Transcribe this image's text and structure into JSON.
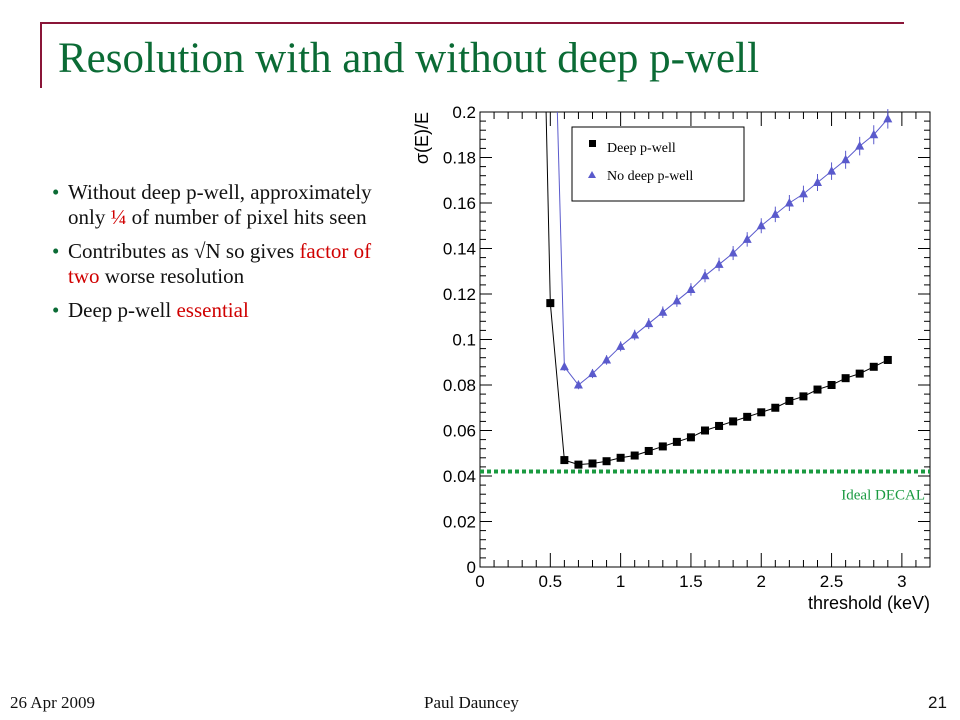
{
  "slide": {
    "title": "Resolution with and without deep p-well",
    "bullets": [
      {
        "parts": [
          {
            "text": "Without deep p-well, approximately only "
          },
          {
            "text": "¼",
            "red": true
          },
          {
            "text": " of number of pixel hits seen"
          }
        ]
      },
      {
        "parts": [
          {
            "text": "Contributes as √N so gives "
          },
          {
            "text": "factor of two",
            "red": true
          },
          {
            "text": " worse resolution"
          }
        ]
      },
      {
        "parts": [
          {
            "text": "Deep p-well "
          },
          {
            "text": "essential",
            "red": true
          }
        ]
      }
    ],
    "footer": {
      "date": "26 Apr 2009",
      "author": "Paul Dauncey",
      "page": "21"
    }
  },
  "colors": {
    "title": "#0b6b35",
    "accent": "#d00000",
    "frame": "#8a1538",
    "series_deep": "#000000",
    "series_nodeep": "#5a5acc",
    "ideal_line": "#1a9a40"
  },
  "chart_data": {
    "type": "scatter",
    "xlabel": "threshold (keV)",
    "ylabel": "σ(E)/E",
    "xlim": [
      0,
      3.2
    ],
    "ylim": [
      0,
      0.2
    ],
    "xticks": [
      0,
      0.5,
      1,
      1.5,
      2,
      2.5,
      3
    ],
    "yticks": [
      0,
      0.02,
      0.04,
      0.06,
      0.08,
      0.1,
      0.12,
      0.14,
      0.16,
      0.18,
      0.2
    ],
    "legend_position": "top-right",
    "series": [
      {
        "name": "Deep p-well",
        "marker": "square",
        "color": "#000000",
        "x": [
          0.5,
          0.6,
          0.7,
          0.8,
          0.9,
          1.0,
          1.1,
          1.2,
          1.3,
          1.4,
          1.5,
          1.6,
          1.7,
          1.8,
          1.9,
          2.0,
          2.1,
          2.2,
          2.3,
          2.4,
          2.5,
          2.6,
          2.7,
          2.8,
          2.9
        ],
        "y": [
          0.116,
          0.047,
          0.045,
          0.0455,
          0.0465,
          0.048,
          0.049,
          0.051,
          0.053,
          0.055,
          0.057,
          0.06,
          0.062,
          0.064,
          0.066,
          0.068,
          0.07,
          0.073,
          0.075,
          0.078,
          0.08,
          0.083,
          0.085,
          0.088,
          0.091
        ]
      },
      {
        "name": "No deep p-well",
        "marker": "triangle",
        "color": "#5a5acc",
        "x": [
          0.6,
          0.7,
          0.8,
          0.9,
          1.0,
          1.1,
          1.2,
          1.3,
          1.4,
          1.5,
          1.6,
          1.7,
          1.8,
          1.9,
          2.0,
          2.1,
          2.2,
          2.3,
          2.4,
          2.5,
          2.6,
          2.7,
          2.8,
          2.9
        ],
        "y": [
          0.088,
          0.08,
          0.085,
          0.091,
          0.097,
          0.102,
          0.107,
          0.112,
          0.117,
          0.122,
          0.128,
          0.133,
          0.138,
          0.144,
          0.15,
          0.155,
          0.16,
          0.164,
          0.169,
          0.174,
          0.179,
          0.185,
          0.19,
          0.197
        ]
      }
    ],
    "reference_line": {
      "label": "Ideal DECAL",
      "y": 0.042,
      "style": "dotted",
      "color": "#1a9a40"
    }
  }
}
